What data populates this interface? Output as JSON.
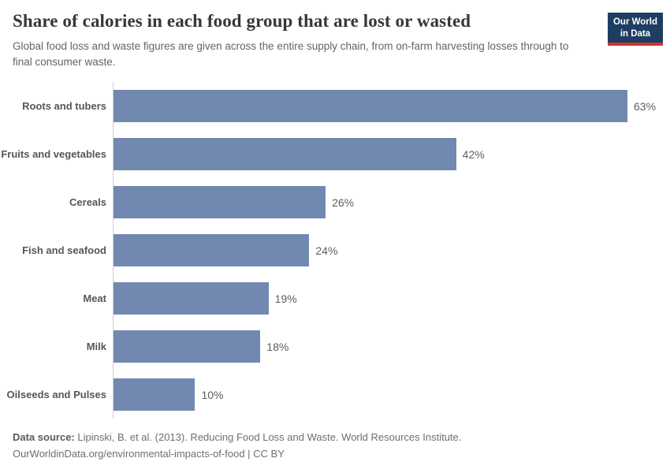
{
  "header": {
    "title": "Share of calories in each food group that are lost or wasted",
    "subtitle": "Global food loss and waste figures are given across the entire supply chain, from on-farm harvesting losses through to final consumer waste.",
    "logo": {
      "line1": "Our World",
      "line2": "in Data"
    }
  },
  "chart_data": {
    "type": "bar",
    "orientation": "horizontal",
    "title": "Share of calories in each food group that are lost or wasted",
    "categories": [
      "Roots and tubers",
      "Fruits and vegetables",
      "Cereals",
      "Fish and seafood",
      "Meat",
      "Milk",
      "Oilseeds and Pulses"
    ],
    "values": [
      63,
      42,
      26,
      24,
      19,
      18,
      10
    ],
    "value_labels": [
      "63%",
      "42%",
      "26%",
      "24%",
      "19%",
      "18%",
      "10%"
    ],
    "unit": "%",
    "xlim": [
      0,
      63
    ],
    "grid": false,
    "axis_line": "left-vertical",
    "bar_color": "#7189b1"
  },
  "footer": {
    "source_label": "Data source:",
    "source_text": " Lipinski, B. et al. (2013). Reducing Food Loss and Waste. World Resources Institute.",
    "line2": "OurWorldinData.org/environmental-impacts-of-food | CC BY"
  },
  "colors": {
    "bar": "#7189b1",
    "axis_line": "#cfcfcf",
    "logo_navy": "#1d3d63",
    "logo_red": "#d1342f",
    "title_text": "#373737",
    "subtitle_text": "#646464"
  }
}
